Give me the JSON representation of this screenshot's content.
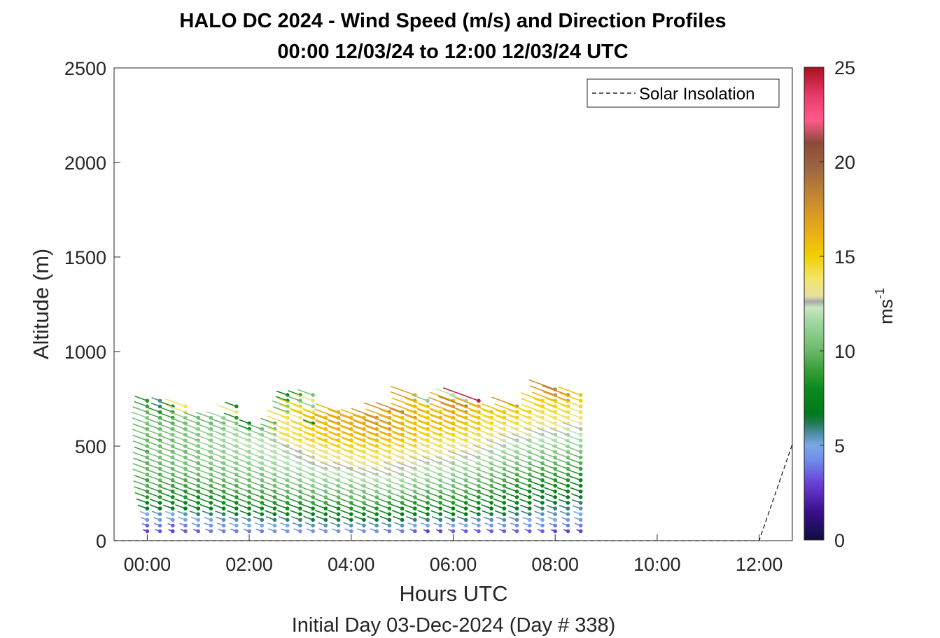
{
  "chart_data": {
    "type": "wind-barb-profile",
    "title_line1": "HALO DC 2024 - Wind Speed (m/s) and Direction Profiles",
    "title_line2": "00:00 12/03/24 to 12:00 12/03/24  UTC",
    "xlabel": "Hours UTC",
    "ylabel": "Altitude (m)",
    "subtitle": "Initial Day 03-Dec-2024 (Day # 338)",
    "x_ticks": [
      "00:00",
      "02:00",
      "04:00",
      "06:00",
      "08:00",
      "10:00",
      "12:00"
    ],
    "x_tick_hours": [
      0,
      2,
      4,
      6,
      8,
      10,
      12
    ],
    "xlim_hours": [
      -0.65,
      12.65
    ],
    "y_ticks": [
      0,
      500,
      1000,
      1500,
      2000,
      2500
    ],
    "ylim": [
      0,
      2500
    ],
    "legend": {
      "label": "Solar Insolation",
      "placement": "top-right"
    },
    "colorbar": {
      "ticks": [
        0,
        5,
        10,
        15,
        20,
        25
      ],
      "range": [
        0,
        25
      ],
      "unit_base": "ms",
      "unit_exp": "-1",
      "stops": [
        [
          0,
          "#0d0d40"
        ],
        [
          1.5,
          "#3b0f8c"
        ],
        [
          3,
          "#6a3fd6"
        ],
        [
          4.2,
          "#6f8be8"
        ],
        [
          5,
          "#7aa8e6"
        ],
        [
          5.6,
          "#4f8fa8"
        ],
        [
          6.2,
          "#207a50"
        ],
        [
          6.7,
          "#007a1a"
        ],
        [
          8,
          "#0c8a1c"
        ],
        [
          9,
          "#3a9e3a"
        ],
        [
          10,
          "#6ab86a"
        ],
        [
          11.5,
          "#a0d6a0"
        ],
        [
          12.3,
          "#c8e8c0"
        ],
        [
          12.6,
          "#a8a8a8"
        ],
        [
          12.9,
          "#e8e0a0"
        ],
        [
          13.8,
          "#f2e66a"
        ],
        [
          15,
          "#f2cf00"
        ],
        [
          16.5,
          "#e8a81a"
        ],
        [
          18,
          "#c88a30"
        ],
        [
          19.5,
          "#a06a40"
        ],
        [
          21,
          "#8a4a3a"
        ],
        [
          22.2,
          "#ff5a8a"
        ],
        [
          23.5,
          "#e83a6a"
        ],
        [
          25,
          "#aa1020"
        ]
      ]
    },
    "profiles": {
      "time_start_hours": 0,
      "time_step_hours": 0.25,
      "altitude_start_m": 50,
      "altitude_step_m": 30,
      "direction_deg": 290,
      "speed_ms": [
        [
          3.0,
          3.5,
          4.5,
          5.0,
          6.5,
          7.5,
          8.5,
          9.0,
          9.5,
          9.0,
          10.0,
          10.0,
          9.5,
          10.0,
          9.0,
          10.0,
          10.0,
          10.5,
          10.0,
          10.5,
          11.0,
          10.0,
          9.0,
          8.5
        ],
        [
          3.5,
          4.0,
          4.5,
          5.5,
          7.0,
          7.0,
          8.5,
          9.0,
          9.5,
          10.0,
          9.5,
          10.0,
          10.0,
          10.5,
          10.5,
          10.0,
          9.5,
          10.5,
          10.0,
          10.0,
          9.5,
          8.5,
          6.0,
          5.8
        ],
        [
          3.0,
          3.5,
          4.5,
          5.0,
          6.5,
          7.5,
          8.0,
          8.5,
          9.0,
          9.5,
          10.0,
          10.0,
          10.0,
          10.5,
          10.0,
          10.5,
          10.0,
          10.5,
          10.0,
          9.5,
          9.0,
          9.0,
          8.0
        ],
        [
          3.5,
          4.0,
          5.0,
          5.5,
          7.0,
          7.5,
          8.5,
          8.5,
          9.0,
          9.5,
          10.0,
          10.5,
          10.5,
          10.5,
          10.0,
          10.5,
          11.0,
          10.5,
          10.5,
          10.0,
          11.0,
          13.5,
          14.0
        ],
        [
          3.5,
          4.5,
          5.0,
          6.0,
          7.0,
          8.0,
          8.0,
          8.5,
          9.5,
          9.5,
          10.0,
          10.5,
          10.0,
          10.5,
          10.5,
          10.5,
          10.5,
          10.5,
          11.0,
          10.5,
          10.0
        ],
        [
          4.0,
          4.5,
          5.0,
          6.0,
          7.5,
          8.0,
          8.5,
          9.0,
          9.5,
          10.0,
          10.5,
          10.0,
          11.0,
          10.5,
          11.0,
          11.5,
          11.0,
          11.0,
          10.5,
          10.0,
          10.5
        ],
        [
          4.0,
          4.5,
          5.5,
          6.0,
          7.0,
          8.0,
          8.5,
          9.0,
          9.5,
          10.0,
          10.0,
          10.5,
          10.5,
          11.0,
          11.0,
          11.0,
          11.5,
          11.0,
          10.5,
          10.0,
          11.5
        ],
        [
          4.0,
          5.0,
          5.5,
          6.5,
          7.5,
          8.0,
          8.5,
          9.5,
          9.5,
          10.5,
          10.5,
          11.0,
          11.0,
          11.5,
          11.5,
          11.5,
          12.0,
          11.5,
          12.0,
          10.5,
          8.5,
          13.5,
          8.0
        ],
        [
          4.0,
          5.0,
          5.5,
          6.5,
          7.5,
          8.5,
          9.0,
          9.5,
          10.0,
          10.0,
          10.5,
          11.0,
          11.0,
          11.5,
          11.5,
          12.0,
          11.5,
          11.0,
          7.5,
          7.0
        ],
        [
          4.0,
          5.0,
          6.0,
          6.5,
          7.5,
          8.5,
          9.0,
          9.5,
          10.0,
          10.5,
          10.5,
          11.0,
          11.5,
          11.5,
          12.0,
          12.0,
          12.0,
          11.0,
          10.0
        ],
        [
          4.5,
          5.0,
          6.0,
          7.0,
          8.0,
          8.5,
          9.0,
          9.5,
          10.0,
          10.5,
          11.0,
          11.5,
          11.5,
          12.0,
          12.0,
          12.0,
          11.5,
          11.0,
          10.0,
          9.5
        ],
        [
          4.5,
          5.0,
          6.0,
          7.0,
          8.0,
          8.5,
          9.5,
          10.0,
          10.5,
          11.0,
          11.5,
          11.5,
          12.0,
          12.0,
          12.0,
          12.5,
          13.0,
          14.0,
          13.5,
          14.0,
          14.5,
          10.0,
          10.5,
          8.0,
          7.5
        ],
        [
          4.5,
          5.5,
          6.0,
          7.0,
          8.0,
          8.5,
          9.5,
          10.0,
          10.5,
          11.0,
          11.5,
          12.0,
          12.0,
          12.5,
          12.5,
          13.5,
          14.5,
          14.0,
          13.5,
          13.5,
          13.5,
          14.5,
          15.0,
          10.0,
          8.5
        ],
        [
          4.5,
          5.5,
          6.5,
          7.0,
          8.0,
          9.0,
          9.5,
          10.0,
          11.0,
          11.5,
          11.5,
          12.0,
          12.5,
          12.5,
          13.0,
          14.0,
          14.5,
          14.5,
          15.0,
          7.0,
          15.5,
          14.0,
          11.0,
          13.5,
          10.5
        ],
        [
          4.5,
          5.5,
          6.5,
          7.5,
          8.0,
          9.0,
          10.0,
          10.5,
          11.0,
          11.5,
          12.0,
          12.5,
          13.0,
          13.5,
          13.5,
          14.5,
          15.0,
          15.0,
          15.5,
          15.5,
          15.5
        ],
        [
          4.5,
          5.5,
          6.5,
          7.5,
          8.0,
          9.0,
          10.0,
          10.5,
          11.0,
          11.5,
          12.0,
          12.5,
          13.0,
          13.5,
          14.0,
          15.0,
          15.5,
          15.5,
          16.0,
          17.0,
          16.5,
          16.0
        ],
        [
          4.5,
          5.5,
          6.5,
          7.5,
          8.5,
          9.0,
          10.0,
          10.5,
          11.0,
          12.0,
          12.0,
          12.5,
          13.0,
          13.5,
          14.5,
          15.0,
          15.5,
          16.0,
          16.0,
          16.5,
          16.0
        ],
        [
          4.5,
          5.5,
          6.5,
          7.5,
          8.5,
          9.5,
          10.0,
          10.5,
          11.0,
          12.0,
          12.5,
          13.0,
          13.5,
          14.0,
          14.5,
          15.0,
          15.5,
          16.0,
          16.0,
          16.5,
          16.0
        ],
        [
          4.5,
          5.5,
          6.5,
          7.5,
          8.5,
          9.5,
          10.0,
          11.0,
          11.5,
          12.0,
          12.5,
          13.0,
          13.5,
          14.0,
          14.5,
          15.5,
          16.0,
          16.5,
          16.5,
          16.5,
          17.5
        ],
        [
          4.0,
          5.5,
          6.5,
          7.5,
          8.5,
          9.0,
          10.0,
          11.0,
          11.5,
          12.0,
          12.5,
          13.0,
          13.5,
          14.0,
          14.5,
          15.0,
          15.5,
          16.5,
          17.5,
          17.5,
          16.5,
          17.5
        ],
        [
          4.0,
          5.5,
          6.5,
          7.0,
          8.0,
          9.0,
          10.0,
          11.0,
          11.5,
          12.0,
          12.5,
          12.5,
          13.0,
          13.5,
          14.0,
          15.0,
          15.5,
          16.0,
          16.0,
          16.0,
          15.5,
          18.0
        ],
        [
          3.5,
          5.0,
          6.0,
          7.0,
          8.0,
          8.5,
          9.5,
          10.5,
          11.0,
          11.5,
          12.0,
          12.5,
          13.0,
          13.5,
          14.0,
          15.0,
          15.5,
          16.0,
          16.0,
          15.5,
          17.5,
          16.5,
          16.0,
          17.0,
          16.5
        ],
        [
          3.0,
          5.0,
          6.0,
          7.0,
          7.5,
          8.5,
          9.5,
          10.0,
          11.0,
          11.5,
          12.0,
          12.0,
          12.5,
          13.0,
          13.5,
          14.0,
          14.5,
          15.0,
          15.5,
          15.5,
          15.0,
          15.5,
          15.5,
          11.0
        ],
        [
          3.0,
          4.5,
          6.0,
          6.5,
          7.5,
          8.5,
          9.0,
          10.0,
          10.5,
          11.0,
          11.5,
          12.0,
          12.5,
          13.0,
          13.5,
          14.0,
          14.5,
          15.0,
          15.5,
          15.5,
          16.0,
          15.0
        ],
        [
          3.5,
          5.0,
          6.0,
          7.0,
          7.5,
          8.5,
          9.0,
          10.0,
          10.5,
          11.0,
          11.5,
          12.0,
          12.5,
          13.0,
          13.5,
          14.0,
          14.5,
          15.0,
          15.5,
          16.0,
          16.0,
          16.5,
          17.0,
          16.0,
          12.0
        ],
        [
          3.5,
          5.0,
          6.0,
          7.0,
          7.5,
          8.0,
          9.0,
          9.5,
          10.0,
          10.5,
          11.0,
          11.5,
          12.0,
          12.5,
          13.0,
          13.5,
          14.5,
          15.0,
          15.5,
          15.5,
          16.0,
          17.5,
          19.0,
          11.5
        ],
        [
          3.5,
          5.0,
          5.5,
          6.5,
          7.5,
          8.0,
          8.5,
          9.0,
          10.0,
          10.5,
          11.0,
          11.5,
          12.0,
          12.5,
          13.0,
          13.5,
          14.0,
          14.5,
          15.5,
          15.5,
          15.5,
          16.0,
          16.5,
          24.5
        ],
        [
          3.5,
          4.5,
          5.5,
          6.5,
          7.0,
          7.5,
          8.5,
          9.0,
          9.5,
          10.0,
          10.5,
          11.0,
          11.5,
          12.0,
          12.5,
          13.0,
          13.5,
          14.0,
          14.5,
          15.0,
          15.0,
          15.5
        ],
        [
          3.5,
          4.5,
          5.5,
          6.5,
          7.0,
          7.5,
          8.0,
          8.5,
          9.0,
          9.5,
          10.0,
          10.5,
          11.0,
          11.5,
          12.0,
          12.5,
          13.0,
          13.5,
          14.0,
          14.5,
          15.0,
          15.5
        ],
        [
          3.5,
          4.5,
          5.5,
          6.0,
          6.5,
          7.0,
          7.5,
          8.0,
          8.5,
          9.0,
          9.5,
          10.0,
          10.5,
          11.0,
          11.5,
          12.0,
          12.5,
          13.0,
          13.5,
          14.5,
          15.0,
          15.5,
          17.5
        ],
        [
          3.5,
          4.5,
          5.0,
          6.0,
          6.5,
          7.0,
          7.5,
          8.0,
          8.5,
          9.0,
          9.5,
          10.0,
          10.5,
          11.0,
          11.5,
          12.0,
          12.5,
          13.0,
          13.5,
          14.0,
          14.5,
          15.0
        ],
        [
          3.5,
          4.5,
          5.0,
          5.5,
          6.0,
          6.5,
          7.0,
          7.5,
          8.0,
          8.5,
          9.0,
          9.5,
          10.0,
          10.5,
          11.0,
          11.5,
          12.0,
          12.5,
          13.0,
          13.5,
          14.0,
          14.5,
          15.0,
          15.0
        ],
        [
          3.0,
          4.0,
          5.0,
          5.5,
          6.0,
          6.5,
          7.0,
          7.5,
          8.0,
          8.5,
          9.0,
          9.5,
          10.0,
          10.5,
          11.0,
          11.5,
          12.0,
          12.5,
          13.0,
          13.5,
          14.0,
          14.5,
          15.0,
          16.0,
          17.5,
          18.0
        ],
        [
          3.0,
          4.0,
          4.5,
          5.5,
          6.0,
          6.5,
          7.0,
          7.5,
          8.0,
          8.5,
          9.0,
          9.5,
          10.0,
          10.5,
          11.0,
          11.5,
          12.0,
          12.5,
          13.0,
          13.5,
          14.0,
          14.5,
          15.0,
          17.0,
          18.0
        ],
        [
          3.0,
          4.0,
          4.5,
          5.0,
          5.5,
          6.0,
          6.5,
          7.0,
          7.5,
          8.0,
          8.5,
          9.0,
          9.5,
          10.0,
          10.5,
          11.0,
          11.5,
          12.0,
          12.5,
          13.0,
          13.5,
          14.0,
          14.5,
          15.0,
          15.5
        ]
      ]
    },
    "solar_insolation": {
      "x_hours": [
        -0.65,
        12.0,
        12.65
      ],
      "y_m": [
        0,
        0,
        510
      ]
    }
  }
}
